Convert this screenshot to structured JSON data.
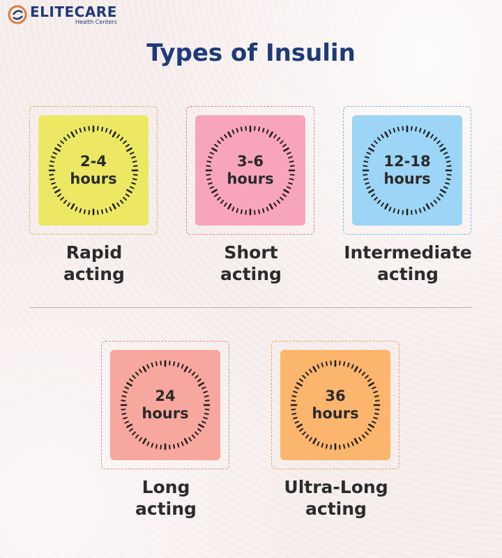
{
  "brand": {
    "name": "ELITECARE",
    "subtitle": "Health Centers"
  },
  "title": "Types of Insulin",
  "insulins": [
    {
      "duration": "2-4 hours",
      "line1": "2-4",
      "line2": "hours",
      "label1": "Rapid",
      "label2": "acting",
      "tile_color": "#ece863",
      "frame_color": "#d6b36a"
    },
    {
      "duration": "3-6 hours",
      "line1": "3-6",
      "line2": "hours",
      "label1": "Short",
      "label2": "acting",
      "tile_color": "#f8a4bd",
      "frame_color": "#e47d94"
    },
    {
      "duration": "12-18 hours",
      "line1": "12-18",
      "line2": "hours",
      "label1": "Intermediate",
      "label2": "acting",
      "tile_color": "#9cd5f5",
      "frame_color": "#6fb9e0"
    },
    {
      "duration": "24 hours",
      "line1": "24",
      "line2": "hours",
      "label1": "Long",
      "label2": "acting",
      "tile_color": "#f7a79d",
      "frame_color": "#e08a78"
    },
    {
      "duration": "36 hours",
      "line1": "36",
      "line2": "hours",
      "label1": "Ultra-Long",
      "label2": "acting",
      "tile_color": "#fbb56c",
      "frame_color": "#e7a35c"
    }
  ],
  "colors": {
    "brand_navy": "#1d3a7a",
    "logo_accent": "#e07a3b",
    "text_dark": "#2b2b2b"
  }
}
